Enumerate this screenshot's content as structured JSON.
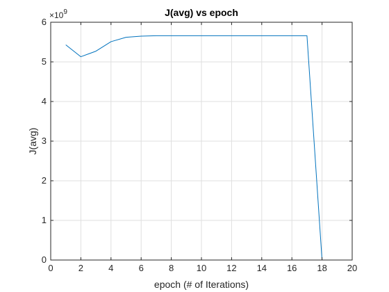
{
  "chart_data": {
    "type": "line",
    "title": "J(avg) vs epoch",
    "xlabel": "epoch (# of Iterations)",
    "ylabel": "J(avg)",
    "y_multiplier_label": "×10",
    "y_multiplier_exponent": "9",
    "xlim": [
      0,
      20
    ],
    "ylim": [
      0,
      6
    ],
    "xticks": [
      0,
      2,
      4,
      6,
      8,
      10,
      12,
      14,
      16,
      18,
      20
    ],
    "yticks": [
      0,
      1,
      2,
      3,
      4,
      5,
      6
    ],
    "grid": true,
    "series": [
      {
        "color": "#0072bd",
        "x": [
          1,
          2,
          3,
          4,
          5,
          6,
          7,
          8,
          9,
          10,
          11,
          12,
          13,
          14,
          15,
          16,
          17,
          18,
          19,
          20
        ],
        "y": [
          5.43,
          5.13,
          5.27,
          5.51,
          5.62,
          5.65,
          5.66,
          5.66,
          5.66,
          5.66,
          5.66,
          5.66,
          5.66,
          5.66,
          5.66,
          5.66,
          5.66,
          0,
          0,
          0
        ]
      }
    ]
  }
}
